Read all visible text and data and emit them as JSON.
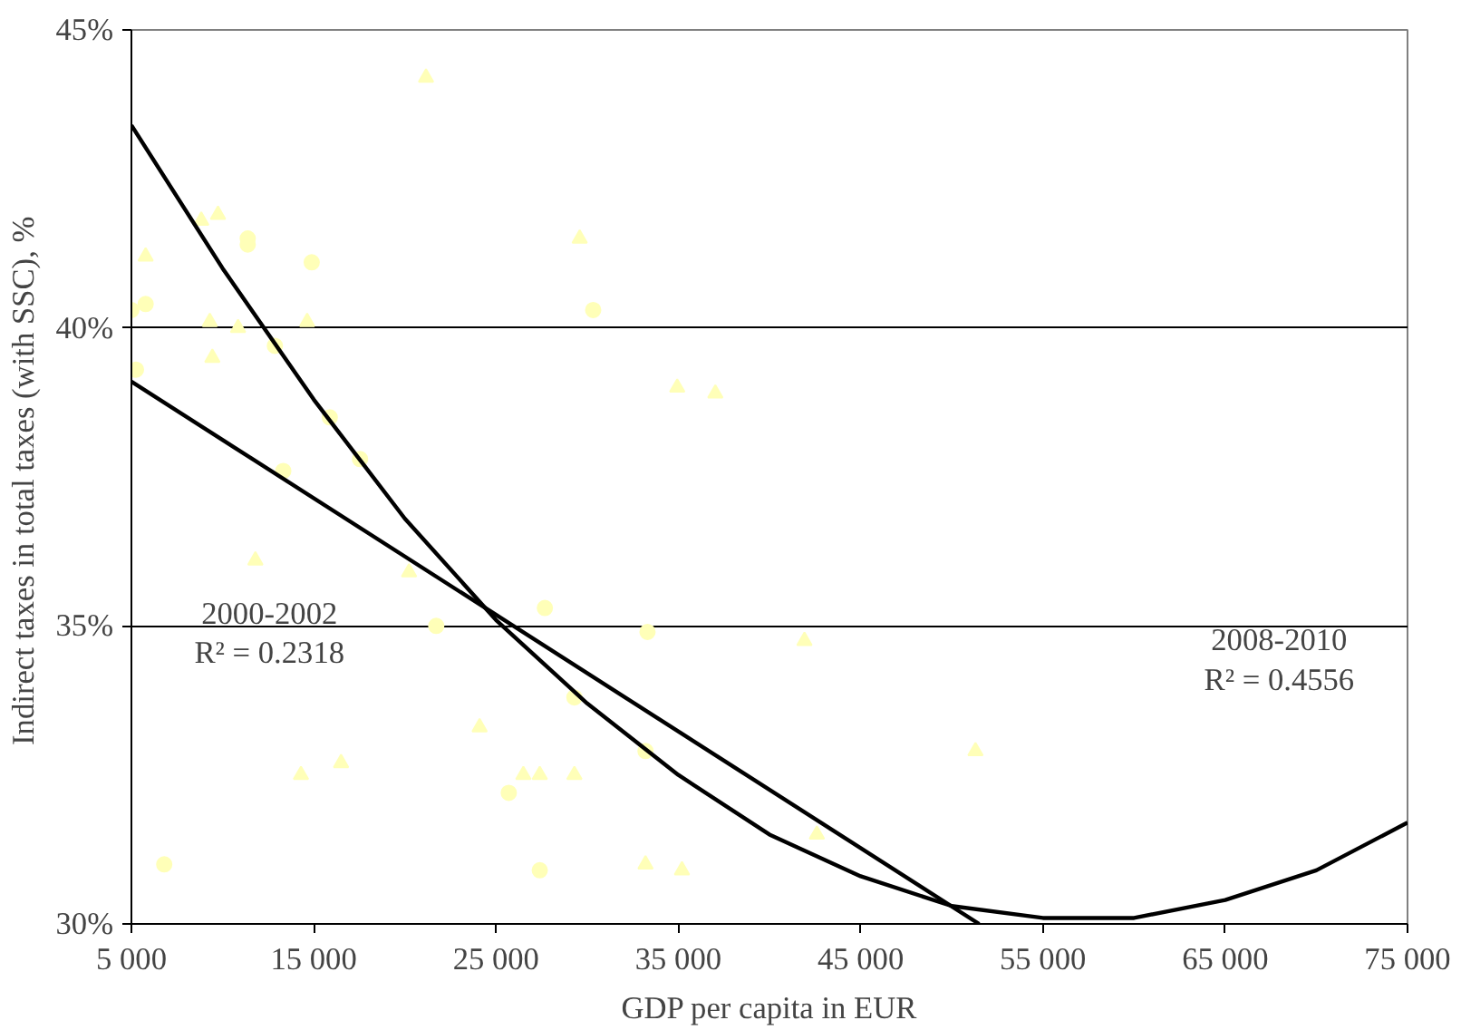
{
  "chart_data": {
    "type": "scatter",
    "xlabel": "GDP per capita in EUR",
    "ylabel": "Indirect taxes in total taxes (with SSC),  %",
    "xlim": [
      5000,
      75000
    ],
    "ylim": [
      30,
      45
    ],
    "xticks": [
      {
        "value": 5000,
        "label": "5 000"
      },
      {
        "value": 15000,
        "label": "15 000"
      },
      {
        "value": 25000,
        "label": "25 000"
      },
      {
        "value": 35000,
        "label": "35 000"
      },
      {
        "value": 45000,
        "label": "45 000"
      },
      {
        "value": 55000,
        "label": "55 000"
      },
      {
        "value": 65000,
        "label": "65 000"
      },
      {
        "value": 75000,
        "label": "75 000"
      }
    ],
    "yticks": [
      {
        "value": 30,
        "label": "30%"
      },
      {
        "value": 35,
        "label": "35%"
      },
      {
        "value": 40,
        "label": "40%"
      },
      {
        "value": 45,
        "label": "45%"
      }
    ],
    "grid": "y",
    "series": [
      {
        "marker": "circle",
        "color": "#ffffb8",
        "x": [
          5000,
          5780,
          11380,
          11380,
          14890,
          30330,
          5250,
          12870,
          15880,
          17540,
          13330,
          21720,
          27680,
          33310,
          6800,
          25700,
          27400,
          29300,
          33200
        ],
        "values": [
          40.3,
          40.4,
          41.5,
          41.4,
          41.1,
          40.3,
          39.3,
          39.7,
          38.5,
          37.8,
          37.6,
          35.0,
          35.3,
          34.9,
          31.0,
          32.2,
          30.9,
          33.8,
          32.9
        ]
      },
      {
        "marker": "triangle",
        "color": "#ffffb8",
        "x": [
          21160,
          8830,
          9750,
          5780,
          29590,
          9300,
          10850,
          14640,
          9440,
          11800,
          20230,
          34940,
          37030,
          41920,
          14300,
          16500,
          24100,
          26500,
          27400,
          29300,
          33200,
          35200,
          51300,
          42600
        ],
        "values": [
          44.2,
          41.8,
          41.9,
          41.2,
          41.5,
          40.1,
          40.0,
          40.1,
          39.5,
          36.1,
          35.9,
          39.0,
          38.9,
          34.75,
          32.5,
          32.7,
          33.3,
          32.5,
          32.5,
          32.5,
          31.0,
          30.9,
          32.9,
          31.5
        ]
      },
      {
        "type": "line",
        "color": "#000000",
        "x": [
          5000,
          51500
        ],
        "values": [
          39.1,
          30.0
        ]
      },
      {
        "type": "line",
        "color": "#000000",
        "x": [
          5000,
          10000,
          15000,
          20000,
          25000,
          30000,
          35000,
          40000,
          45000,
          50000,
          55000,
          60000,
          65000,
          70000,
          75000
        ],
        "values": [
          43.4,
          41.0,
          38.8,
          36.8,
          35.1,
          33.7,
          32.5,
          31.5,
          30.8,
          30.3,
          30.1,
          30.1,
          30.4,
          30.9,
          31.7
        ]
      }
    ],
    "annotations": [
      "2000-2002",
      "R² = 0.2318",
      "2008-2010",
      "R² = 0.4556"
    ]
  }
}
